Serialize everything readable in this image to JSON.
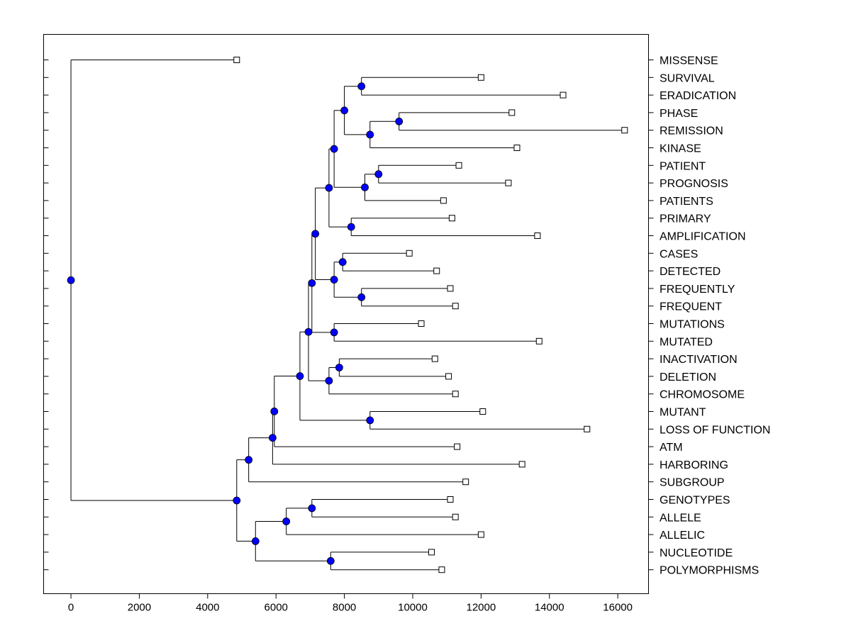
{
  "chart_data": {
    "type": "dendrogram",
    "title": "",
    "xlabel": "",
    "ylabel": "",
    "xlim": [
      -800,
      16900
    ],
    "x_ticks": [
      0,
      2000,
      4000,
      6000,
      8000,
      10000,
      12000,
      14000,
      16000
    ],
    "node_color": "#0000ff",
    "leaves": [
      {
        "label": "MISSENSE",
        "value": 4850
      },
      {
        "label": "SURVIVAL",
        "value": 12000
      },
      {
        "label": "ERADICATION",
        "value": 14400
      },
      {
        "label": "PHASE",
        "value": 12900
      },
      {
        "label": "REMISSION",
        "value": 16200
      },
      {
        "label": "KINASE",
        "value": 13050
      },
      {
        "label": "PATIENT",
        "value": 11350
      },
      {
        "label": "PROGNOSIS",
        "value": 12800
      },
      {
        "label": "PATIENTS",
        "value": 10900
      },
      {
        "label": "PRIMARY",
        "value": 11150
      },
      {
        "label": "AMPLIFICATION",
        "value": 13650
      },
      {
        "label": "CASES",
        "value": 9900
      },
      {
        "label": "DETECTED",
        "value": 10700
      },
      {
        "label": "FREQUENTLY",
        "value": 11100
      },
      {
        "label": "FREQUENT",
        "value": 11250
      },
      {
        "label": "MUTATIONS",
        "value": 10250
      },
      {
        "label": "MUTATED",
        "value": 13700
      },
      {
        "label": "INACTIVATION",
        "value": 10650
      },
      {
        "label": "DELETION",
        "value": 11050
      },
      {
        "label": "CHROMOSOME",
        "value": 11250
      },
      {
        "label": "MUTANT",
        "value": 12050
      },
      {
        "label": "LOSS OF FUNCTION",
        "value": 15100
      },
      {
        "label": "ATM",
        "value": 11300
      },
      {
        "label": "HARBORING",
        "value": 13200
      },
      {
        "label": "SUBGROUP",
        "value": 11550
      },
      {
        "label": "GENOTYPES",
        "value": 11100
      },
      {
        "label": "ALLELE",
        "value": 11250
      },
      {
        "label": "ALLELIC",
        "value": 12000
      },
      {
        "label": "NUCLEOTIDE",
        "value": 10550
      },
      {
        "label": "POLYMORPHISMS",
        "value": 10850
      }
    ],
    "merges": [
      {
        "id": "n1",
        "value": 8500,
        "children": [
          "SURVIVAL",
          "ERADICATION"
        ]
      },
      {
        "id": "n2",
        "value": 9600,
        "children": [
          "PHASE",
          "REMISSION"
        ]
      },
      {
        "id": "n3",
        "value": 8750,
        "children": [
          "n2",
          "KINASE"
        ]
      },
      {
        "id": "n4",
        "value": 8000,
        "children": [
          "n1",
          "n3"
        ]
      },
      {
        "id": "n5",
        "value": 9000,
        "children": [
          "PATIENT",
          "PROGNOSIS"
        ]
      },
      {
        "id": "n6",
        "value": 8600,
        "children": [
          "n5",
          "PATIENTS"
        ]
      },
      {
        "id": "n7",
        "value": 7700,
        "children": [
          "n4",
          "n6"
        ]
      },
      {
        "id": "n8",
        "value": 8200,
        "children": [
          "PRIMARY",
          "AMPLIFICATION"
        ]
      },
      {
        "id": "n9",
        "value": 7550,
        "children": [
          "n7",
          "n8"
        ]
      },
      {
        "id": "n10",
        "value": 7950,
        "children": [
          "CASES",
          "DETECTED"
        ]
      },
      {
        "id": "n11",
        "value": 8500,
        "children": [
          "FREQUENTLY",
          "FREQUENT"
        ]
      },
      {
        "id": "n12",
        "value": 7700,
        "children": [
          "n10",
          "n11"
        ]
      },
      {
        "id": "n13",
        "value": 7150,
        "children": [
          "n9",
          "n12"
        ]
      },
      {
        "id": "n14",
        "value": 7700,
        "children": [
          "MUTATIONS",
          "MUTATED"
        ]
      },
      {
        "id": "n15",
        "value": 7050,
        "children": [
          "n13",
          "n14"
        ]
      },
      {
        "id": "n16",
        "value": 7850,
        "children": [
          "INACTIVATION",
          "DELETION"
        ]
      },
      {
        "id": "n17",
        "value": 7550,
        "children": [
          "n16",
          "CHROMOSOME"
        ]
      },
      {
        "id": "n18",
        "value": 6950,
        "children": [
          "n15",
          "n17"
        ]
      },
      {
        "id": "n19",
        "value": 8750,
        "children": [
          "MUTANT",
          "LOSS OF FUNCTION"
        ]
      },
      {
        "id": "n20",
        "value": 6700,
        "children": [
          "n18",
          "n19"
        ]
      },
      {
        "id": "n21",
        "value": 5950,
        "children": [
          "n20",
          "ATM"
        ]
      },
      {
        "id": "n22",
        "value": 5900,
        "children": [
          "n21",
          "HARBORING"
        ]
      },
      {
        "id": "n23",
        "value": 5200,
        "children": [
          "n22",
          "SUBGROUP"
        ]
      },
      {
        "id": "n24",
        "value": 7050,
        "children": [
          "GENOTYPES",
          "ALLELE"
        ]
      },
      {
        "id": "n25",
        "value": 6300,
        "children": [
          "n24",
          "ALLELIC"
        ]
      },
      {
        "id": "n26",
        "value": 7600,
        "children": [
          "NUCLEOTIDE",
          "POLYMORPHISMS"
        ]
      },
      {
        "id": "n27",
        "value": 5400,
        "children": [
          "n25",
          "n26"
        ]
      },
      {
        "id": "n28",
        "value": 4850,
        "children": [
          "n23",
          "n27"
        ]
      },
      {
        "id": "root",
        "value": 0,
        "children": [
          "MISSENSE",
          "n28"
        ]
      }
    ]
  }
}
